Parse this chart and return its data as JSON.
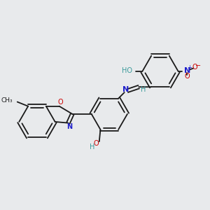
{
  "background_color": "#e8eaec",
  "bond_color": "#1a1a1a",
  "atom_colors": {
    "O": "#cc0000",
    "N": "#2020cc",
    "C": "#1a1a1a",
    "H": "#3a9a9a"
  },
  "lw": 1.3,
  "fs": 7.0
}
